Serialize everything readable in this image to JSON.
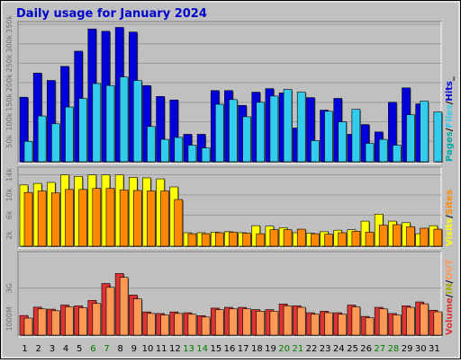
{
  "chart_data": {
    "type": "bar",
    "title": "Daily usage for January 2024",
    "categories": [
      "1",
      "2",
      "3",
      "4",
      "5",
      "6",
      "7",
      "8",
      "9",
      "10",
      "11",
      "12",
      "13",
      "14",
      "15",
      "16",
      "17",
      "18",
      "19",
      "20",
      "21",
      "22",
      "23",
      "24",
      "25",
      "26",
      "27",
      "28",
      "29",
      "30",
      "31"
    ],
    "weekend_days": [
      "6",
      "7",
      "13",
      "14",
      "20",
      "21",
      "27",
      "28"
    ],
    "colors": {
      "title": "#0000cc",
      "weekday_label": "#000000",
      "weekend_label": "#008000",
      "background": "#c0c0c0",
      "hits": "#0000dd",
      "files": "#33ccee",
      "pages": "#00aaaa",
      "sites": "#ff8800",
      "visits": "#ffff00",
      "kb_out": "#dd3333",
      "kb_in": "#ff9955"
    },
    "panels": [
      {
        "name": "requests",
        "ylim": [
          0,
          350000
        ],
        "ticks": [
          "50k",
          "100k",
          "150k",
          "200k",
          "250k",
          "300k",
          "350k"
        ],
        "tick_values": [
          50000,
          100000,
          150000,
          200000,
          250000,
          300000,
          350000
        ],
        "legend": [
          "Pages",
          "/",
          "Files",
          "/",
          "Hits",
          "_"
        ],
        "series": [
          {
            "name": "Hits",
            "values": [
              163000,
              225000,
              206000,
              242000,
              281000,
              338000,
              332000,
              342000,
              330000,
              193000,
              165000,
              156000,
              68000,
              68000,
              180000,
              180000,
              142000,
              176000,
              185000,
              174000,
              84000,
              162000,
              130000,
              160000,
              68000,
              93000,
              74000,
              150000,
              187000,
              146000,
              0
            ]
          },
          {
            "name": "Files",
            "values": [
              50000,
              115000,
              95000,
              138000,
              160000,
              198000,
              193000,
              215000,
              206000,
              88000,
              55000,
              60000,
              40000,
              33000,
              145000,
              157000,
              113000,
              150000,
              166000,
              183000,
              176000,
              52000,
              127000,
              100000,
              132000,
              45000,
              55000,
              40000,
              118000,
              153000,
              125000
            ]
          }
        ]
      },
      {
        "name": "visitors",
        "ylim": [
          0,
          15000
        ],
        "ticks": [
          "2k",
          "6k",
          "10k",
          "14k"
        ],
        "tick_values": [
          2000,
          6000,
          10000,
          14000
        ],
        "legend": [
          "Visits",
          "/",
          "Sites"
        ],
        "series": [
          {
            "name": "Visits",
            "values": [
              12000,
              12300,
              12500,
              14000,
              13700,
              14000,
              14000,
              14000,
              13500,
              13400,
              13200,
              11600,
              2500,
              2500,
              2600,
              2700,
              2500,
              3900,
              3800,
              3500,
              2500,
              2400,
              2700,
              3000,
              3100,
              4800,
              6200,
              4800,
              4500,
              2300,
              3900
            ]
          },
          {
            "name": "Sites",
            "values": [
              10500,
              10800,
              10400,
              11100,
              11100,
              11300,
              11300,
              11000,
              10900,
              10800,
              10800,
              9100,
              2300,
              2300,
              2500,
              2600,
              2400,
              2300,
              3100,
              3100,
              3200,
              2300,
              2200,
              2500,
              2800,
              2600,
              4000,
              4100,
              3700,
              3400,
              3200
            ]
          }
        ]
      },
      {
        "name": "volume",
        "ylim": [
          0,
          5200
        ],
        "ticks": [
          "1000M",
          "3G"
        ],
        "tick_values": [
          1000,
          3000
        ],
        "legend": [
          "Volume",
          "/",
          "IN",
          "/",
          "OUT"
        ],
        "series": [
          {
            "name": "Volume",
            "values": [
              1220,
              1760,
              1630,
              1900,
              1850,
              2200,
              3300,
              3950,
              2550,
              1450,
              1350,
              1450,
              1400,
              1210,
              1700,
              1750,
              1750,
              1600,
              1600,
              1970,
              1850,
              1400,
              1500,
              1400,
              1900,
              1160,
              1750,
              1350,
              1850,
              2100,
              1560
            ]
          },
          {
            "name": "OUT",
            "values": [
              1050,
              1650,
              1530,
              1780,
              1720,
              2000,
              3050,
              3700,
              2300,
              1350,
              1250,
              1350,
              1300,
              1120,
              1600,
              1650,
              1650,
              1500,
              1500,
              1850,
              1750,
              1300,
              1400,
              1300,
              1780,
              1070,
              1650,
              1250,
              1750,
              1980,
              1460
            ]
          }
        ]
      }
    ]
  }
}
